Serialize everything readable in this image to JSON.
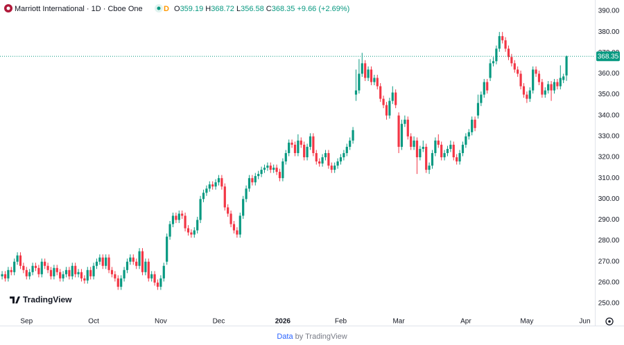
{
  "header": {
    "title": "Marriott International · 1D · Cboe One",
    "interval_badge": "D",
    "ohlc_letters": [
      "O",
      "H",
      "L",
      "C"
    ],
    "change": "+9.66 (+2.69%)"
  },
  "logo": "TradingView",
  "footer": {
    "link": "Data",
    "text": "by TradingView"
  },
  "chart_data": {
    "type": "candlestick",
    "up_color": "#089981",
    "down_color": "#f23645",
    "xlim": [
      -0.7,
      194.3
    ],
    "ylim": [
      239.4,
      395.3
    ],
    "grid": false,
    "xticks": [
      {
        "value": 8,
        "label": "Sep"
      },
      {
        "value": 30,
        "label": "Oct"
      },
      {
        "value": 52,
        "label": "Nov"
      },
      {
        "value": 71,
        "label": "Dec"
      },
      {
        "value": 92,
        "label": "2026"
      },
      {
        "value": 111,
        "label": "Feb"
      },
      {
        "value": 130,
        "label": "Mar"
      },
      {
        "value": 152,
        "label": "Apr"
      },
      {
        "value": 172,
        "label": "May"
      },
      {
        "value": 191,
        "label": "Jun"
      }
    ],
    "yticks": [
      {
        "value": 250,
        "label": "250.00"
      },
      {
        "value": 260,
        "label": "260.00"
      },
      {
        "value": 270,
        "label": "270.00"
      },
      {
        "value": 280,
        "label": "280.00"
      },
      {
        "value": 290,
        "label": "290.00"
      },
      {
        "value": 300,
        "label": "300.00"
      },
      {
        "value": 310,
        "label": "310.00"
      },
      {
        "value": 320,
        "label": "320.00"
      },
      {
        "value": 330,
        "label": "330.00"
      },
      {
        "value": 340,
        "label": "340.00"
      },
      {
        "value": 350,
        "label": "350.00"
      },
      {
        "value": 360,
        "label": "360.00"
      },
      {
        "value": 370,
        "label": "370.00"
      },
      {
        "value": 380,
        "label": "380.00"
      },
      {
        "value": 390,
        "label": "390.00"
      }
    ],
    "ohlc": [
      [
        263,
        265.5,
        261.5,
        264
      ],
      [
        264,
        265.5,
        260.5,
        262
      ],
      [
        262,
        267.5,
        260.5,
        266
      ],
      [
        266,
        267.5,
        263.5,
        265
      ],
      [
        265,
        271.5,
        263.5,
        270
      ],
      [
        270,
        274.5,
        268.5,
        273
      ],
      [
        273,
        274.5,
        266.5,
        268
      ],
      [
        268,
        269.5,
        264.5,
        266
      ],
      [
        266,
        267.5,
        261.5,
        263
      ],
      [
        263,
        266.5,
        261.5,
        265
      ],
      [
        265,
        269.5,
        263.5,
        268
      ],
      [
        268,
        269.5,
        265.5,
        267
      ],
      [
        267,
        268.5,
        262.5,
        264
      ],
      [
        264,
        271.5,
        262.5,
        270
      ],
      [
        270,
        271.5,
        266.5,
        268
      ],
      [
        268,
        269.5,
        264.5,
        266
      ],
      [
        266,
        267.5,
        261.5,
        263
      ],
      [
        263,
        268.5,
        261.5,
        267
      ],
      [
        267,
        268.5,
        263.5,
        265
      ],
      [
        265,
        266.5,
        260.5,
        262
      ],
      [
        262,
        265.5,
        260.5,
        264
      ],
      [
        264,
        267.5,
        262.5,
        266
      ],
      [
        266,
        267.5,
        261.5,
        263
      ],
      [
        263,
        269.5,
        261.5,
        268
      ],
      [
        268,
        269.5,
        262.5,
        264
      ],
      [
        264,
        266.5,
        262.5,
        265
      ],
      [
        265,
        266.5,
        260.5,
        262
      ],
      [
        262,
        263.5,
        259.5,
        261
      ],
      [
        261,
        267.5,
        259.5,
        266
      ],
      [
        266,
        267.5,
        261.5,
        263
      ],
      [
        263,
        269.5,
        261.5,
        268
      ],
      [
        268,
        271.5,
        266.5,
        270
      ],
      [
        270,
        273.5,
        268.5,
        272
      ],
      [
        272,
        273.5,
        266.5,
        268
      ],
      [
        268,
        273.5,
        266.5,
        272
      ],
      [
        272,
        273.5,
        264.5,
        266
      ],
      [
        266,
        267.5,
        262.5,
        264
      ],
      [
        264,
        265.5,
        260.5,
        262
      ],
      [
        262,
        263.5,
        256.5,
        258
      ],
      [
        258,
        263.5,
        256.5,
        262
      ],
      [
        262,
        267.5,
        260.5,
        266
      ],
      [
        266,
        271.5,
        264.5,
        270
      ],
      [
        270,
        273.5,
        268.5,
        272
      ],
      [
        272,
        273.5,
        268.5,
        270
      ],
      [
        270,
        271.5,
        266.5,
        268
      ],
      [
        268,
        276.5,
        266.5,
        275
      ],
      [
        275,
        276.5,
        263.5,
        265
      ],
      [
        265,
        271.5,
        263.5,
        270
      ],
      [
        270,
        271.5,
        260.5,
        262
      ],
      [
        262,
        265.5,
        260.5,
        264
      ],
      [
        264,
        265.5,
        258.5,
        260
      ],
      [
        260,
        261.5,
        256.5,
        258
      ],
      [
        258,
        263.5,
        256.5,
        262
      ],
      [
        262,
        269.5,
        260.5,
        268
      ],
      [
        270,
        283.5,
        268.5,
        282
      ],
      [
        282,
        289.5,
        280.5,
        288
      ],
      [
        288,
        293.5,
        286.5,
        292
      ],
      [
        292,
        293.5,
        288.5,
        290
      ],
      [
        290,
        294.5,
        288.5,
        293
      ],
      [
        293,
        294.5,
        290.5,
        292
      ],
      [
        292,
        293.5,
        284.5,
        286
      ],
      [
        286,
        287.5,
        282.5,
        284
      ],
      [
        284,
        285.5,
        281.5,
        283
      ],
      [
        283,
        286.5,
        281.5,
        285
      ],
      [
        285,
        291.5,
        283.5,
        290
      ],
      [
        290,
        301.5,
        288.5,
        300
      ],
      [
        300,
        304.5,
        298.5,
        303
      ],
      [
        303,
        306.5,
        301.5,
        305
      ],
      [
        305,
        308.5,
        303.5,
        307
      ],
      [
        307,
        308.5,
        304.5,
        306
      ],
      [
        306,
        309.5,
        304.5,
        308
      ],
      [
        308,
        311.5,
        306.5,
        310
      ],
      [
        310,
        311.5,
        304.5,
        306
      ],
      [
        306,
        307.5,
        294.5,
        296
      ],
      [
        296,
        297.5,
        291.5,
        293
      ],
      [
        293,
        294.5,
        286.5,
        288
      ],
      [
        288,
        289.5,
        283.5,
        285
      ],
      [
        285,
        286.5,
        281.5,
        283
      ],
      [
        283,
        293.5,
        281.5,
        292
      ],
      [
        292,
        301.5,
        290.5,
        300
      ],
      [
        300,
        306.5,
        298.5,
        305
      ],
      [
        305,
        311.5,
        303.5,
        310
      ],
      [
        310,
        311.5,
        306.5,
        308
      ],
      [
        308,
        312.5,
        306.5,
        311
      ],
      [
        311,
        313.5,
        309.5,
        312
      ],
      [
        312,
        315.5,
        310.5,
        314
      ],
      [
        314,
        316.5,
        312.5,
        315
      ],
      [
        315,
        317.5,
        313.5,
        316
      ],
      [
        316,
        317.5,
        312.5,
        314
      ],
      [
        314,
        316.5,
        312.5,
        315
      ],
      [
        315,
        316.5,
        311.5,
        313
      ],
      [
        313,
        314.5,
        308.5,
        310
      ],
      [
        310,
        319.5,
        308.5,
        318
      ],
      [
        318,
        323.5,
        316.5,
        322
      ],
      [
        322,
        328.5,
        320.5,
        327
      ],
      [
        327,
        328.5,
        324.5,
        326
      ],
      [
        326,
        327.5,
        320.5,
        322
      ],
      [
        322,
        331,
        320.5,
        328
      ],
      [
        328,
        329.5,
        324.5,
        326
      ],
      [
        326,
        327.5,
        318.5,
        320
      ],
      [
        320,
        326.5,
        318.5,
        325
      ],
      [
        325,
        331.5,
        323.5,
        330
      ],
      [
        330,
        331.5,
        320.5,
        322
      ],
      [
        322,
        323.5,
        316.5,
        318
      ],
      [
        318,
        319.5,
        315.5,
        317
      ],
      [
        317,
        321.5,
        315.5,
        320
      ],
      [
        320,
        323.5,
        318.5,
        322
      ],
      [
        322,
        323.5,
        314.5,
        316
      ],
      [
        316,
        317.5,
        312.5,
        314
      ],
      [
        314,
        317.5,
        312.5,
        316
      ],
      [
        316,
        319.5,
        314.5,
        318
      ],
      [
        318,
        321.5,
        316.5,
        320
      ],
      [
        320,
        323.5,
        318.5,
        322
      ],
      [
        322,
        326.5,
        320.5,
        325
      ],
      [
        325,
        329.5,
        323.5,
        328
      ],
      [
        328,
        334.5,
        326.5,
        333
      ],
      [
        350,
        362,
        347,
        352
      ],
      [
        352,
        367,
        350.5,
        360
      ],
      [
        360,
        370,
        358.5,
        365
      ],
      [
        365,
        366.5,
        356.5,
        358
      ],
      [
        358,
        363.5,
        356.5,
        362
      ],
      [
        362,
        363.5,
        354.5,
        356
      ],
      [
        356,
        359.5,
        354.5,
        358
      ],
      [
        358,
        359.5,
        352.5,
        354
      ],
      [
        354,
        355.5,
        346.5,
        348
      ],
      [
        348,
        349.5,
        343.5,
        345
      ],
      [
        345,
        346.5,
        338,
        340
      ],
      [
        340,
        348.5,
        338.5,
        347
      ],
      [
        347,
        354,
        345.5,
        351
      ],
      [
        351,
        352.5,
        343.5,
        345
      ],
      [
        340,
        341.5,
        322,
        325
      ],
      [
        325,
        338,
        323.5,
        336
      ],
      [
        336,
        340,
        334.5,
        338
      ],
      [
        338,
        339.5,
        328.5,
        330
      ],
      [
        330,
        331.5,
        323.5,
        325
      ],
      [
        325,
        330,
        323.5,
        328
      ],
      [
        328,
        329.5,
        312,
        320
      ],
      [
        320,
        325.5,
        318.5,
        324
      ],
      [
        324,
        328,
        322.5,
        325
      ],
      [
        325,
        326.5,
        312.5,
        314
      ],
      [
        314,
        317.5,
        312,
        316
      ],
      [
        316,
        323.5,
        314.5,
        322
      ],
      [
        322,
        329.5,
        320.5,
        328
      ],
      [
        328,
        331,
        324.5,
        326
      ],
      [
        326,
        327.5,
        318.5,
        320
      ],
      [
        320,
        323.5,
        318.5,
        322
      ],
      [
        322,
        325.5,
        320.5,
        324
      ],
      [
        324,
        328,
        322.5,
        326
      ],
      [
        326,
        327.5,
        318.5,
        320
      ],
      [
        320,
        321.5,
        316.5,
        318
      ],
      [
        318,
        323.5,
        316.5,
        322
      ],
      [
        322,
        327.5,
        320.5,
        326
      ],
      [
        326,
        331.5,
        324.5,
        330
      ],
      [
        330,
        333.5,
        328.5,
        332
      ],
      [
        332,
        339.5,
        330.5,
        338
      ],
      [
        338,
        339.5,
        332.5,
        334
      ],
      [
        340,
        350,
        338.5,
        346
      ],
      [
        346,
        351.5,
        344.5,
        350
      ],
      [
        350,
        357.5,
        348.5,
        356
      ],
      [
        356,
        357.5,
        350.5,
        352
      ],
      [
        358,
        367,
        356.5,
        365
      ],
      [
        365,
        368,
        363.5,
        366
      ],
      [
        366,
        373.5,
        364.5,
        372
      ],
      [
        372,
        380,
        370.5,
        378
      ],
      [
        378,
        380,
        374.5,
        376
      ],
      [
        376,
        377.5,
        370.5,
        372
      ],
      [
        372,
        373.5,
        366.5,
        368
      ],
      [
        368,
        369.5,
        363.5,
        365
      ],
      [
        365,
        366.5,
        360.5,
        362
      ],
      [
        362,
        363.5,
        358.5,
        360
      ],
      [
        360,
        361.5,
        352.5,
        354
      ],
      [
        354,
        355.5,
        348.5,
        350
      ],
      [
        350,
        351.5,
        346,
        348
      ],
      [
        348,
        353.5,
        346.5,
        352
      ],
      [
        352,
        363.5,
        350.5,
        362
      ],
      [
        362,
        363.5,
        358.5,
        360
      ],
      [
        360,
        361.5,
        354.5,
        356
      ],
      [
        356,
        357.5,
        348.5,
        350
      ],
      [
        350,
        353.5,
        348.5,
        352
      ],
      [
        352,
        356.5,
        350.5,
        355
      ],
      [
        355,
        356.5,
        347,
        352
      ],
      [
        352,
        357.5,
        350.5,
        356
      ],
      [
        356,
        357.5,
        352.5,
        354
      ],
      [
        354,
        364,
        352.5,
        358
      ],
      [
        357,
        360,
        355.5,
        358.69
      ],
      [
        359.19,
        368.72,
        356.58,
        368.35
      ]
    ]
  }
}
